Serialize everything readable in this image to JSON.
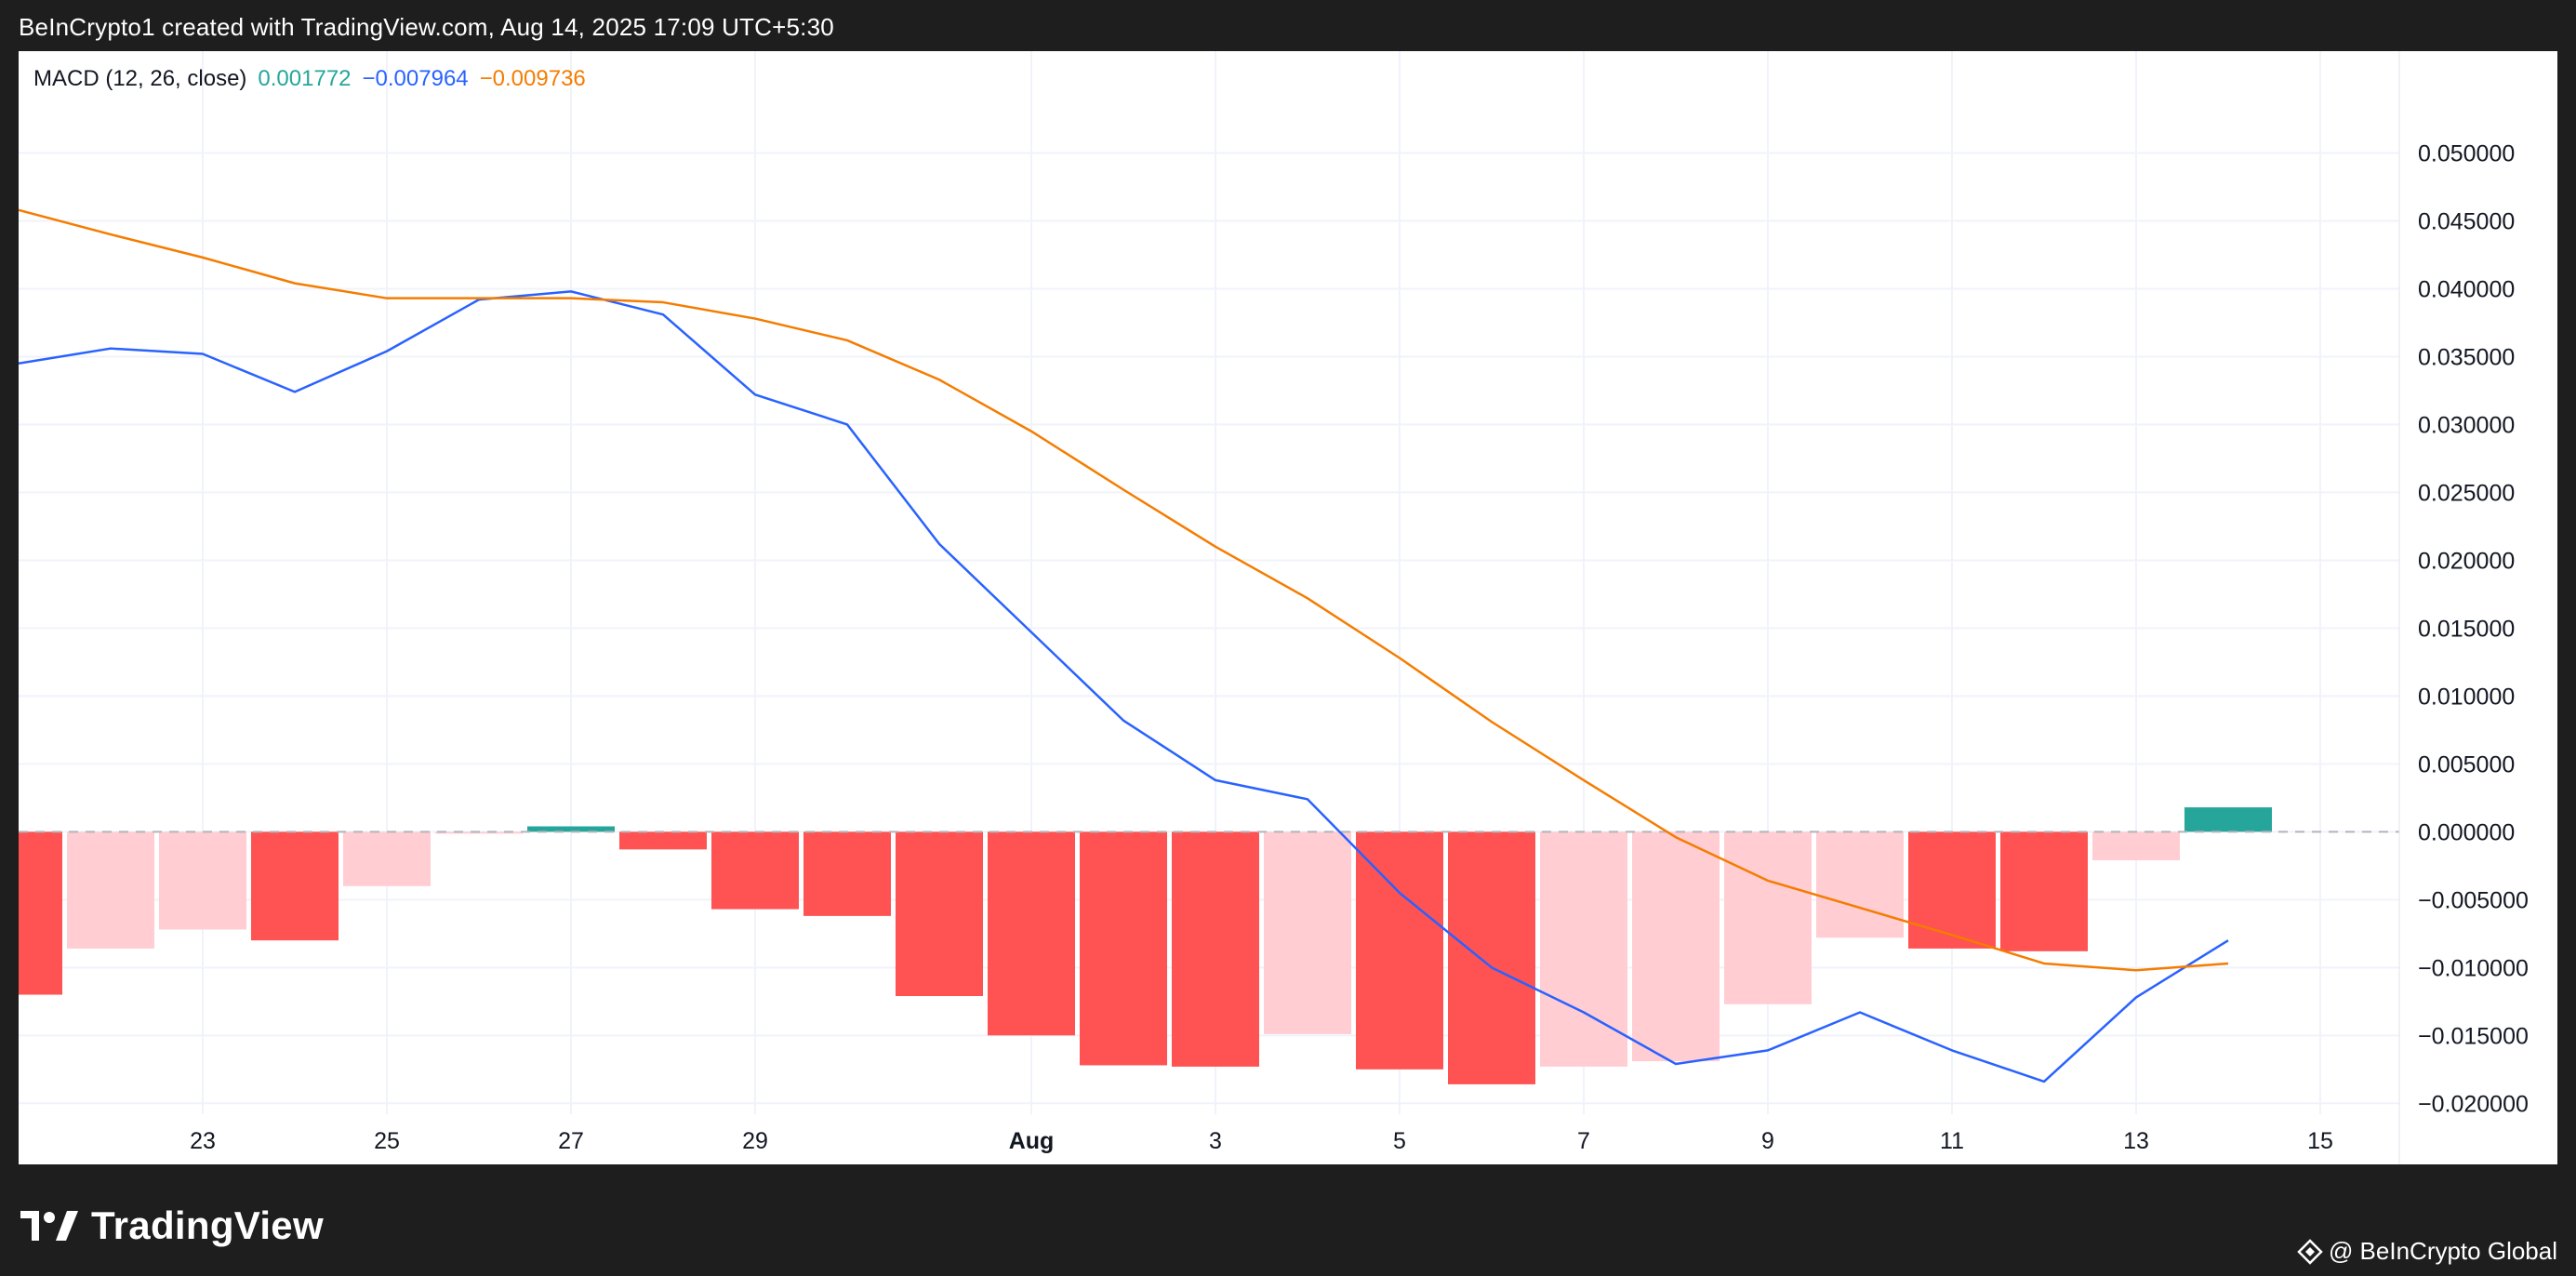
{
  "header": {
    "caption": "BeInCrypto1 created with TradingView.com, Aug 14, 2025 17:09 UTC+5:30"
  },
  "legend": {
    "indicator": "MACD (12, 26, close)",
    "histogram_value": "0.001772",
    "macd_value": "−0.007964",
    "signal_value": "−0.009736"
  },
  "footer": {
    "brand": "TradingView",
    "credit": "@ BeInCrypto Global"
  },
  "colors": {
    "macd_line": "#2962ff",
    "signal_line": "#f57c00",
    "hist_pos_strong": "#26a69a",
    "hist_neg_strong": "#ff5252",
    "hist_neg_weak": "#ffcdd2",
    "grid": "#f0f3fa",
    "zero_line": "#b2b5be",
    "axis_text": "#131722"
  },
  "chart_data": {
    "type": "line",
    "indicator": "MACD (12, 26, close)",
    "x": [
      "Jul 21",
      "Jul 22",
      "Jul 23",
      "Jul 24",
      "Jul 25",
      "Jul 26",
      "Jul 27",
      "Jul 28",
      "Jul 29",
      "Jul 30",
      "Jul 31",
      "Aug 1",
      "Aug 2",
      "Aug 3",
      "Aug 4",
      "Aug 5",
      "Aug 6",
      "Aug 7",
      "Aug 8",
      "Aug 9",
      "Aug 10",
      "Aug 11",
      "Aug 12",
      "Aug 13",
      "Aug 14"
    ],
    "series": [
      {
        "name": "MACD",
        "type": "line",
        "color": "#2962ff",
        "values": [
          0.0345,
          0.0356,
          0.0352,
          0.0324,
          0.0354,
          0.0392,
          0.0398,
          0.0381,
          0.0322,
          0.03,
          0.0212,
          0.0147,
          0.0082,
          0.0038,
          0.0024,
          -0.0045,
          -0.01,
          -0.0133,
          -0.0171,
          -0.0161,
          -0.0133,
          -0.0161,
          -0.0184,
          -0.0122,
          -0.008
        ]
      },
      {
        "name": "Signal",
        "type": "line",
        "color": "#f57c00",
        "values": [
          0.0458,
          0.044,
          0.0423,
          0.0404,
          0.0393,
          0.0393,
          0.0393,
          0.039,
          0.0378,
          0.0362,
          0.0333,
          0.0295,
          0.0252,
          0.021,
          0.0172,
          0.0128,
          0.0081,
          0.0038,
          -0.0004,
          -0.0036,
          -0.0056,
          -0.0076,
          -0.0097,
          -0.0102,
          -0.0097
        ]
      },
      {
        "name": "Histogram",
        "type": "bar",
        "values": [
          -0.012,
          -0.0086,
          -0.0072,
          -0.008,
          -0.004,
          -0.0001,
          0.0004,
          -0.0013,
          -0.0057,
          -0.0062,
          -0.0121,
          -0.015,
          -0.0172,
          -0.0173,
          -0.0149,
          -0.0175,
          -0.0186,
          -0.0173,
          -0.0169,
          -0.0127,
          -0.0078,
          -0.0086,
          -0.0088,
          -0.0021,
          0.0018
        ],
        "colors": [
          "#ff5252",
          "#ffcdd2",
          "#ffcdd2",
          "#ff5252",
          "#ffcdd2",
          "#ffcdd2",
          "#26a69a",
          "#ff5252",
          "#ff5252",
          "#ff5252",
          "#ff5252",
          "#ff5252",
          "#ff5252",
          "#ff5252",
          "#ffcdd2",
          "#ff5252",
          "#ff5252",
          "#ffcdd2",
          "#ffcdd2",
          "#ffcdd2",
          "#ffcdd2",
          "#ff5252",
          "#ff5252",
          "#ffcdd2",
          "#26a69a"
        ]
      }
    ],
    "ylim": [
      -0.0245,
      0.0575
    ],
    "y_ticks": [
      0.05,
      0.045,
      0.04,
      0.035,
      0.03,
      0.025,
      0.02,
      0.015,
      0.01,
      0.005,
      0.0,
      -0.005,
      -0.01,
      -0.015,
      -0.02
    ],
    "y_tick_labels": [
      "0.050000",
      "0.045000",
      "0.040000",
      "0.035000",
      "0.030000",
      "0.025000",
      "0.020000",
      "0.015000",
      "0.010000",
      "0.005000",
      "0.000000",
      "−0.005000",
      "−0.010000",
      "−0.015000",
      "−0.020000"
    ],
    "x_ticks": [
      {
        "label": "23",
        "x": "Jul 23",
        "bold": false
      },
      {
        "label": "25",
        "x": "Jul 25",
        "bold": false
      },
      {
        "label": "27",
        "x": "Jul 27",
        "bold": false
      },
      {
        "label": "29",
        "x": "Jul 29",
        "bold": false
      },
      {
        "label": "Aug",
        "x": "Aug 1",
        "bold": true
      },
      {
        "label": "3",
        "x": "Aug 3",
        "bold": false
      },
      {
        "label": "5",
        "x": "Aug 5",
        "bold": false
      },
      {
        "label": "7",
        "x": "Aug 7",
        "bold": false
      },
      {
        "label": "9",
        "x": "Aug 9",
        "bold": false
      },
      {
        "label": "11",
        "x": "Aug 11",
        "bold": false
      },
      {
        "label": "13",
        "x": "Aug 13",
        "bold": false
      },
      {
        "label": "15",
        "x": "Aug 15",
        "bold": false
      }
    ],
    "grid": true,
    "zero_line": "dashed"
  }
}
